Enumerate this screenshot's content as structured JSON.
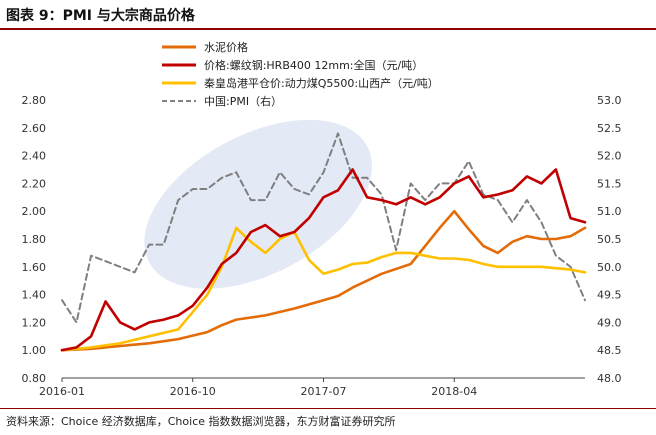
{
  "figure": {
    "title": "图表 9：PMI 与大宗商品价格",
    "source": "资料来源：Choice 经济数据库，Choice 指数数据浏览器，东方财富证券研究所"
  },
  "chart_data": {
    "type": "line",
    "title": "图表 9：PMI 与大宗商品价格",
    "x_ticks": [
      "2016-01",
      "2016-10",
      "2017-07",
      "2018-04"
    ],
    "x_range": [
      "2016-01",
      "2019-01"
    ],
    "y_left": {
      "lim": [
        0.8,
        2.8
      ],
      "ticks": [
        "0.80",
        "1.00",
        "1.20",
        "1.40",
        "1.60",
        "1.80",
        "2.00",
        "2.20",
        "2.40",
        "2.60",
        "2.80"
      ]
    },
    "y_right": {
      "lim": [
        48.0,
        53.0
      ],
      "ticks": [
        "48.0",
        "48.5",
        "49.0",
        "49.5",
        "50.0",
        "50.5",
        "51.0",
        "51.5",
        "52.0",
        "52.5",
        "53.0"
      ]
    },
    "legend_position": "top-center",
    "highlight": {
      "shape": "ellipse",
      "color": "#dfe5f5",
      "x_range": [
        "2016-06",
        "2017-11"
      ],
      "y_range": [
        1.55,
        2.55
      ]
    },
    "series": [
      {
        "name": "水泥价格",
        "axis": "left",
        "color": "#E36C09",
        "style": "solid",
        "x": [
          0,
          2,
          4,
          6,
          8,
          10,
          11,
          12,
          14,
          16,
          18,
          19,
          20,
          22,
          24,
          26,
          27,
          28,
          29,
          30,
          31,
          32,
          33,
          34,
          35,
          36
        ],
        "values": [
          1.0,
          1.01,
          1.03,
          1.05,
          1.08,
          1.13,
          1.18,
          1.22,
          1.25,
          1.3,
          1.36,
          1.39,
          1.45,
          1.55,
          1.62,
          1.88,
          2.0,
          1.87,
          1.75,
          1.7,
          1.78,
          1.82,
          1.8,
          1.8,
          1.82,
          1.88
        ]
      },
      {
        "name": "价格:螺纹钢:HRB400 12mm:全国（元/吨）",
        "axis": "left",
        "color": "#C00000",
        "style": "solid",
        "x": [
          0,
          1,
          2,
          3,
          4,
          5,
          6,
          7,
          8,
          9,
          10,
          11,
          12,
          13,
          14,
          15,
          16,
          17,
          18,
          19,
          20,
          21,
          22,
          23,
          24,
          25,
          26,
          27,
          28,
          29,
          30,
          31,
          32,
          33,
          34,
          35,
          36
        ],
        "values": [
          1.0,
          1.02,
          1.1,
          1.35,
          1.2,
          1.15,
          1.2,
          1.22,
          1.25,
          1.32,
          1.45,
          1.62,
          1.7,
          1.85,
          1.9,
          1.82,
          1.85,
          1.95,
          2.1,
          2.15,
          2.3,
          2.1,
          2.08,
          2.05,
          2.1,
          2.05,
          2.1,
          2.2,
          2.25,
          2.1,
          2.12,
          2.15,
          2.25,
          2.2,
          2.3,
          1.95,
          1.92
        ]
      },
      {
        "name": "秦皇岛港平仓价:动力煤Q5500:山西产（元/吨）",
        "axis": "left",
        "color": "#FFC000",
        "style": "solid",
        "x": [
          0,
          2,
          4,
          6,
          8,
          10,
          11,
          12,
          13,
          14,
          15,
          16,
          17,
          18,
          19,
          20,
          21,
          22,
          23,
          24,
          25,
          26,
          27,
          28,
          29,
          30,
          31,
          32,
          33,
          34,
          35,
          36
        ],
        "values": [
          1.0,
          1.02,
          1.05,
          1.1,
          1.15,
          1.4,
          1.6,
          1.88,
          1.78,
          1.7,
          1.8,
          1.85,
          1.65,
          1.55,
          1.58,
          1.62,
          1.63,
          1.67,
          1.7,
          1.7,
          1.68,
          1.66,
          1.66,
          1.65,
          1.62,
          1.6,
          1.6,
          1.6,
          1.6,
          1.59,
          1.58,
          1.56
        ]
      },
      {
        "name": "中国:PMI（右）",
        "axis": "right",
        "color": "#7F7F7F",
        "style": "dashed",
        "x": [
          0,
          1,
          2,
          3,
          4,
          5,
          6,
          7,
          8,
          9,
          10,
          11,
          12,
          13,
          14,
          15,
          16,
          17,
          18,
          19,
          20,
          21,
          22,
          23,
          24,
          25,
          26,
          27,
          28,
          29,
          30,
          31,
          32,
          33,
          34,
          35,
          36
        ],
        "values": [
          49.4,
          49.0,
          50.2,
          50.1,
          50.0,
          49.9,
          50.4,
          50.4,
          51.2,
          51.4,
          51.4,
          51.6,
          51.7,
          51.2,
          51.2,
          51.7,
          51.4,
          51.3,
          51.7,
          52.4,
          51.6,
          51.6,
          51.3,
          50.3,
          51.5,
          51.2,
          51.5,
          51.5,
          51.9,
          51.3,
          51.2,
          50.8,
          51.2,
          50.8,
          50.2,
          50.0,
          49.4
        ]
      }
    ]
  }
}
